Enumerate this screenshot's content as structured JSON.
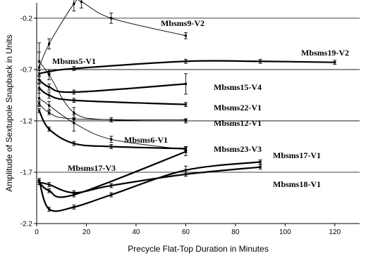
{
  "chart_data": {
    "type": "line",
    "xlabel": "Precycle Flat-Top Duration in Minutes",
    "ylabel": "Amplitude of Sextupole Snapback in Units",
    "xlim": [
      0,
      130
    ],
    "ylim": [
      -2.2,
      -0.05
    ],
    "x_ticks": [
      0,
      20,
      40,
      60,
      80,
      100,
      120
    ],
    "y_ticks": [
      -0.2,
      -0.7,
      -1.2,
      -1.7,
      -2.2
    ],
    "grid": "horizontal",
    "series": [
      {
        "name": "Mbsms9-V2",
        "weight": "thin",
        "x": [
          1,
          5,
          15,
          18,
          30,
          60
        ],
        "y": [
          -0.68,
          -0.45,
          -0.06,
          -0.04,
          -0.2,
          -0.37
        ],
        "err": [
          0.15,
          0.05,
          0.07,
          0.06,
          0.05,
          0.03
        ]
      },
      {
        "name": "Mbsms19-V2",
        "weight": "thick",
        "x": [
          1,
          5,
          15,
          60,
          90,
          120
        ],
        "y": [
          -0.74,
          -0.72,
          -0.69,
          -0.62,
          -0.62,
          -0.63
        ],
        "err": [
          0.03,
          0.02,
          0.02,
          0.02,
          0.02,
          0.02
        ]
      },
      {
        "name": "Mbsms5-V1",
        "weight": "thin",
        "x": [
          1,
          5,
          15,
          30,
          60
        ],
        "y": [
          -0.62,
          -0.75,
          -1.12,
          -1.19,
          -1.2
        ],
        "err": [
          0.18,
          0.05,
          0.05,
          0.02,
          0.02
        ]
      },
      {
        "name": "Mbsms15-V4",
        "weight": "thick",
        "x": [
          1,
          5,
          15,
          60
        ],
        "y": [
          -0.8,
          -0.87,
          -0.92,
          -0.84
        ],
        "err": [
          0.04,
          0.03,
          0.02,
          0.1
        ]
      },
      {
        "name": "Mbsms22-V1",
        "weight": "thick",
        "x": [
          1,
          5,
          15,
          60
        ],
        "y": [
          -0.88,
          -0.95,
          -1.0,
          -1.04
        ],
        "err": [
          0.05,
          0.03,
          0.02,
          0.02
        ]
      },
      {
        "name": "Mbsms12-V1",
        "weight": "thin",
        "x": [
          1,
          5,
          15,
          60
        ],
        "y": [
          -1.03,
          -1.12,
          -1.18,
          -1.19
        ],
        "err": [
          0.02,
          0.02,
          0.01,
          0.01
        ]
      },
      {
        "name": "Mbsms6-V1",
        "weight": "thin",
        "x": [
          1,
          5,
          15,
          30,
          60
        ],
        "y": [
          -0.98,
          -1.05,
          -1.22,
          -1.38,
          -1.48
        ],
        "err": [
          0.08,
          0.04,
          0.08,
          0.03,
          0.03
        ]
      },
      {
        "name": "Mbsms23-V3",
        "weight": "thick",
        "x": [
          1,
          5,
          15,
          30,
          60
        ],
        "y": [
          -1.1,
          -1.28,
          -1.42,
          -1.45,
          -1.47
        ],
        "err": [
          0.02,
          0.02,
          0.02,
          0.02,
          0.02
        ]
      },
      {
        "name": "Mbsms17-V3",
        "weight": "thick",
        "x": [
          1,
          5,
          15,
          60
        ],
        "y": [
          -1.8,
          -1.88,
          -1.92,
          -1.5
        ],
        "err": [
          0.02,
          0.02,
          0.02,
          0.04
        ]
      },
      {
        "name": "Mbsms17-V1",
        "weight": "thick",
        "x": [
          1,
          5,
          15,
          30,
          60,
          90
        ],
        "y": [
          -1.8,
          -1.82,
          -1.9,
          -1.83,
          -1.72,
          -1.65
        ],
        "err": [
          0.02,
          0.02,
          0.02,
          0.02,
          0.02,
          0.02
        ]
      },
      {
        "name": "Mbsms18-V1",
        "weight": "thick",
        "x": [
          1,
          5,
          15,
          30,
          60,
          90
        ],
        "y": [
          -1.78,
          -2.06,
          -2.04,
          -1.92,
          -1.68,
          -1.6
        ],
        "err": [
          0.02,
          0.02,
          0.02,
          0.02,
          0.04,
          0.02
        ]
      }
    ]
  }
}
